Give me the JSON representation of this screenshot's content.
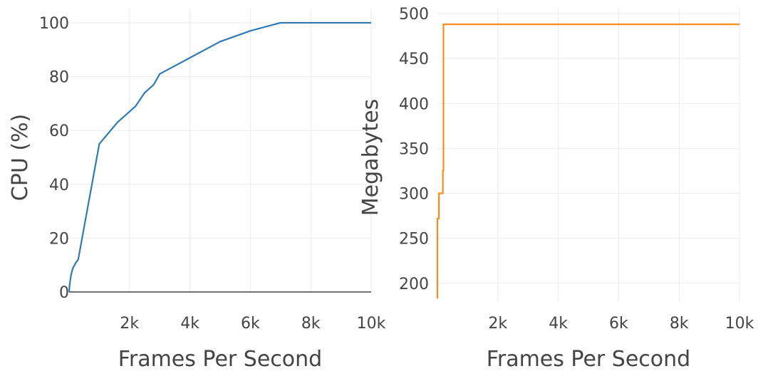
{
  "chart_data": [
    {
      "type": "line",
      "xlabel": "Frames Per Second",
      "ylabel": "CPU (%)",
      "xlim": [
        0,
        10000
      ],
      "ylim": [
        0,
        100
      ],
      "x_ticks": [
        2000,
        4000,
        6000,
        8000,
        10000
      ],
      "x_tick_labels": [
        "2k",
        "4k",
        "6k",
        "8k",
        "10k"
      ],
      "y_ticks": [
        0,
        20,
        40,
        60,
        80,
        100
      ],
      "y_tick_labels": [
        "0",
        "20",
        "40",
        "60",
        "80",
        "100"
      ],
      "grid": true,
      "color": "#2f7ab7",
      "series": [
        {
          "x": [
            0,
            20,
            60,
            100,
            130,
            180,
            230,
            300,
            1000,
            1600,
            2200,
            2500,
            2800,
            3000,
            4000,
            5000,
            6000,
            7000,
            8000,
            10000
          ],
          "y": [
            0,
            3,
            6,
            8,
            9,
            10,
            11,
            12,
            55,
            63,
            69,
            74,
            77,
            81,
            87,
            93,
            97,
            100,
            100,
            100
          ]
        }
      ]
    },
    {
      "type": "line",
      "xlabel": "Frames Per Second",
      "ylabel": "Megabytes",
      "xlim": [
        0,
        10000
      ],
      "ylim": [
        180,
        500
      ],
      "x_ticks": [
        2000,
        4000,
        6000,
        8000,
        10000
      ],
      "x_tick_labels": [
        "2k",
        "4k",
        "6k",
        "8k",
        "10k"
      ],
      "y_ticks": [
        200,
        250,
        300,
        350,
        400,
        450,
        500
      ],
      "y_tick_labels": [
        "200",
        "250",
        "300",
        "350",
        "400",
        "450",
        "500"
      ],
      "grid": true,
      "color": "#ff8c1a",
      "series": [
        {
          "x": [
            0,
            0,
            50,
            50,
            180,
            180,
            200,
            200,
            10000
          ],
          "y": [
            183,
            272,
            272,
            300,
            300,
            325,
            325,
            488,
            488
          ]
        }
      ]
    }
  ]
}
